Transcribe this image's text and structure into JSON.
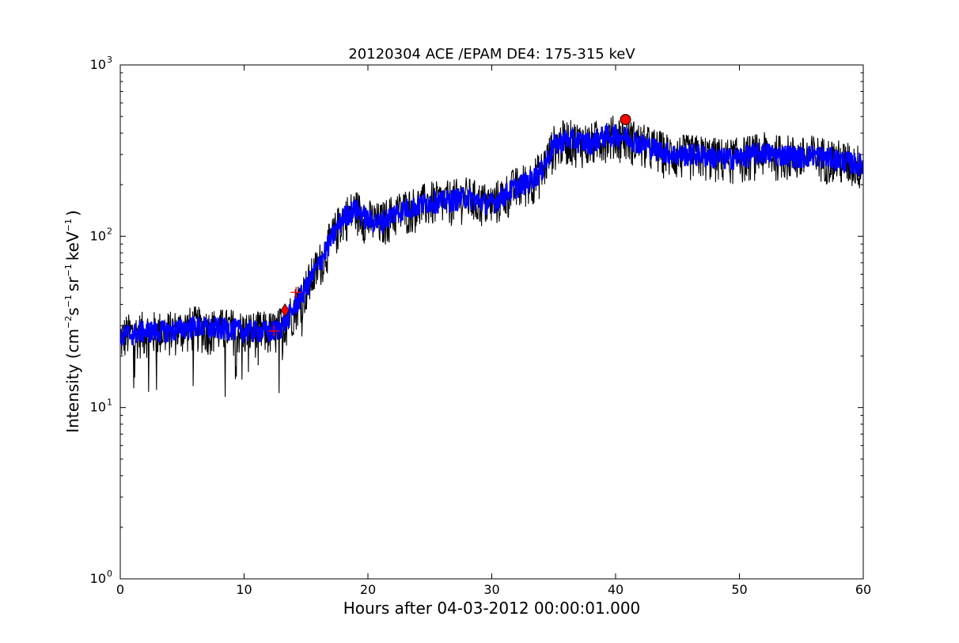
{
  "chart_data": {
    "type": "line",
    "title": "20120304 ACE /EPAM DE4: 175-315 keV",
    "xlabel": "Hours after 04-03-2012 00:00:01.000",
    "ylabel": {
      "prefix": "Intensity (cm",
      "exp1": "−2",
      "mid1": "s",
      "exp2": "−1",
      "mid2": "sr",
      "exp3": "−1",
      "mid3": "keV",
      "exp4": "−1",
      "suffix": ")"
    },
    "xlim": [
      0,
      60
    ],
    "ylim": [
      1,
      1000
    ],
    "yscale": "log",
    "grid": false,
    "x_ticks": [
      {
        "value": 0,
        "label": "0"
      },
      {
        "value": 10,
        "label": "10"
      },
      {
        "value": 20,
        "label": "20"
      },
      {
        "value": 30,
        "label": "30"
      },
      {
        "value": 40,
        "label": "40"
      },
      {
        "value": 50,
        "label": "50"
      },
      {
        "value": 60,
        "label": "60"
      }
    ],
    "y_ticks": [
      {
        "value": 1,
        "base": "10",
        "exp": "0"
      },
      {
        "value": 10,
        "base": "10",
        "exp": "1"
      },
      {
        "value": 100,
        "base": "10",
        "exp": "2"
      },
      {
        "value": 1000,
        "base": "10",
        "exp": "3"
      }
    ],
    "series": [
      {
        "role": "raw intensity",
        "color": "#000000",
        "noise": 0.14,
        "x": [
          0,
          0.5,
          1,
          2,
          3,
          4,
          5,
          6,
          7,
          8,
          9,
          10,
          11,
          12,
          12.5,
          13,
          13.5,
          14,
          15,
          16,
          17,
          18,
          19,
          20,
          21,
          22,
          23,
          24,
          25,
          26,
          27,
          28,
          29,
          30,
          31,
          32,
          33,
          34,
          35,
          36,
          37,
          38,
          39,
          40,
          41,
          42,
          43,
          44,
          45,
          46,
          47,
          48,
          49,
          50,
          51,
          52,
          53,
          54,
          55,
          56,
          57,
          58,
          59,
          60
        ],
        "y": [
          25,
          27,
          27,
          28,
          28,
          28,
          29,
          30,
          29,
          29,
          29,
          28,
          28,
          28,
          28,
          30,
          33,
          38,
          50,
          68,
          95,
          130,
          145,
          125,
          120,
          135,
          145,
          150,
          160,
          160,
          165,
          170,
          160,
          155,
          175,
          195,
          210,
          240,
          340,
          370,
          360,
          350,
          385,
          390,
          380,
          350,
          330,
          310,
          300,
          300,
          300,
          290,
          285,
          290,
          300,
          310,
          300,
          300,
          290,
          300,
          290,
          280,
          270,
          260
        ]
      },
      {
        "role": "smoothed intensity",
        "color": "#0000ff",
        "noise": 0.07,
        "x": [
          0,
          0.5,
          1,
          2,
          3,
          4,
          5,
          6,
          7,
          8,
          9,
          10,
          11,
          12,
          12.5,
          13,
          13.5,
          14,
          15,
          16,
          17,
          18,
          19,
          20,
          21,
          22,
          23,
          24,
          25,
          26,
          27,
          28,
          29,
          30,
          31,
          32,
          33,
          34,
          35,
          36,
          37,
          38,
          39,
          40,
          41,
          42,
          43,
          44,
          45,
          46,
          47,
          48,
          49,
          50,
          51,
          52,
          53,
          54,
          55,
          56,
          57,
          58,
          59,
          60
        ],
        "y": [
          25,
          27,
          27,
          28,
          28,
          28,
          29,
          30,
          29,
          29,
          29,
          28,
          28,
          28,
          28,
          30,
          33,
          38,
          50,
          68,
          95,
          130,
          145,
          125,
          120,
          135,
          145,
          150,
          160,
          160,
          165,
          170,
          160,
          155,
          175,
          195,
          210,
          240,
          340,
          370,
          360,
          350,
          385,
          390,
          380,
          350,
          330,
          310,
          300,
          300,
          300,
          290,
          285,
          290,
          300,
          310,
          300,
          300,
          290,
          300,
          290,
          280,
          270,
          260
        ]
      }
    ],
    "markers": [
      {
        "shape": "plus",
        "color": "#ff0000",
        "x": 12.4,
        "y": 28
      },
      {
        "shape": "plus",
        "color": "#ff0000",
        "x": 14.2,
        "y": 47
      },
      {
        "shape": "diamond",
        "color": "#ff0000",
        "x": 13.3,
        "y": 37
      },
      {
        "shape": "circle",
        "color": "#ff0000",
        "x": 40.8,
        "y": 480
      }
    ]
  }
}
